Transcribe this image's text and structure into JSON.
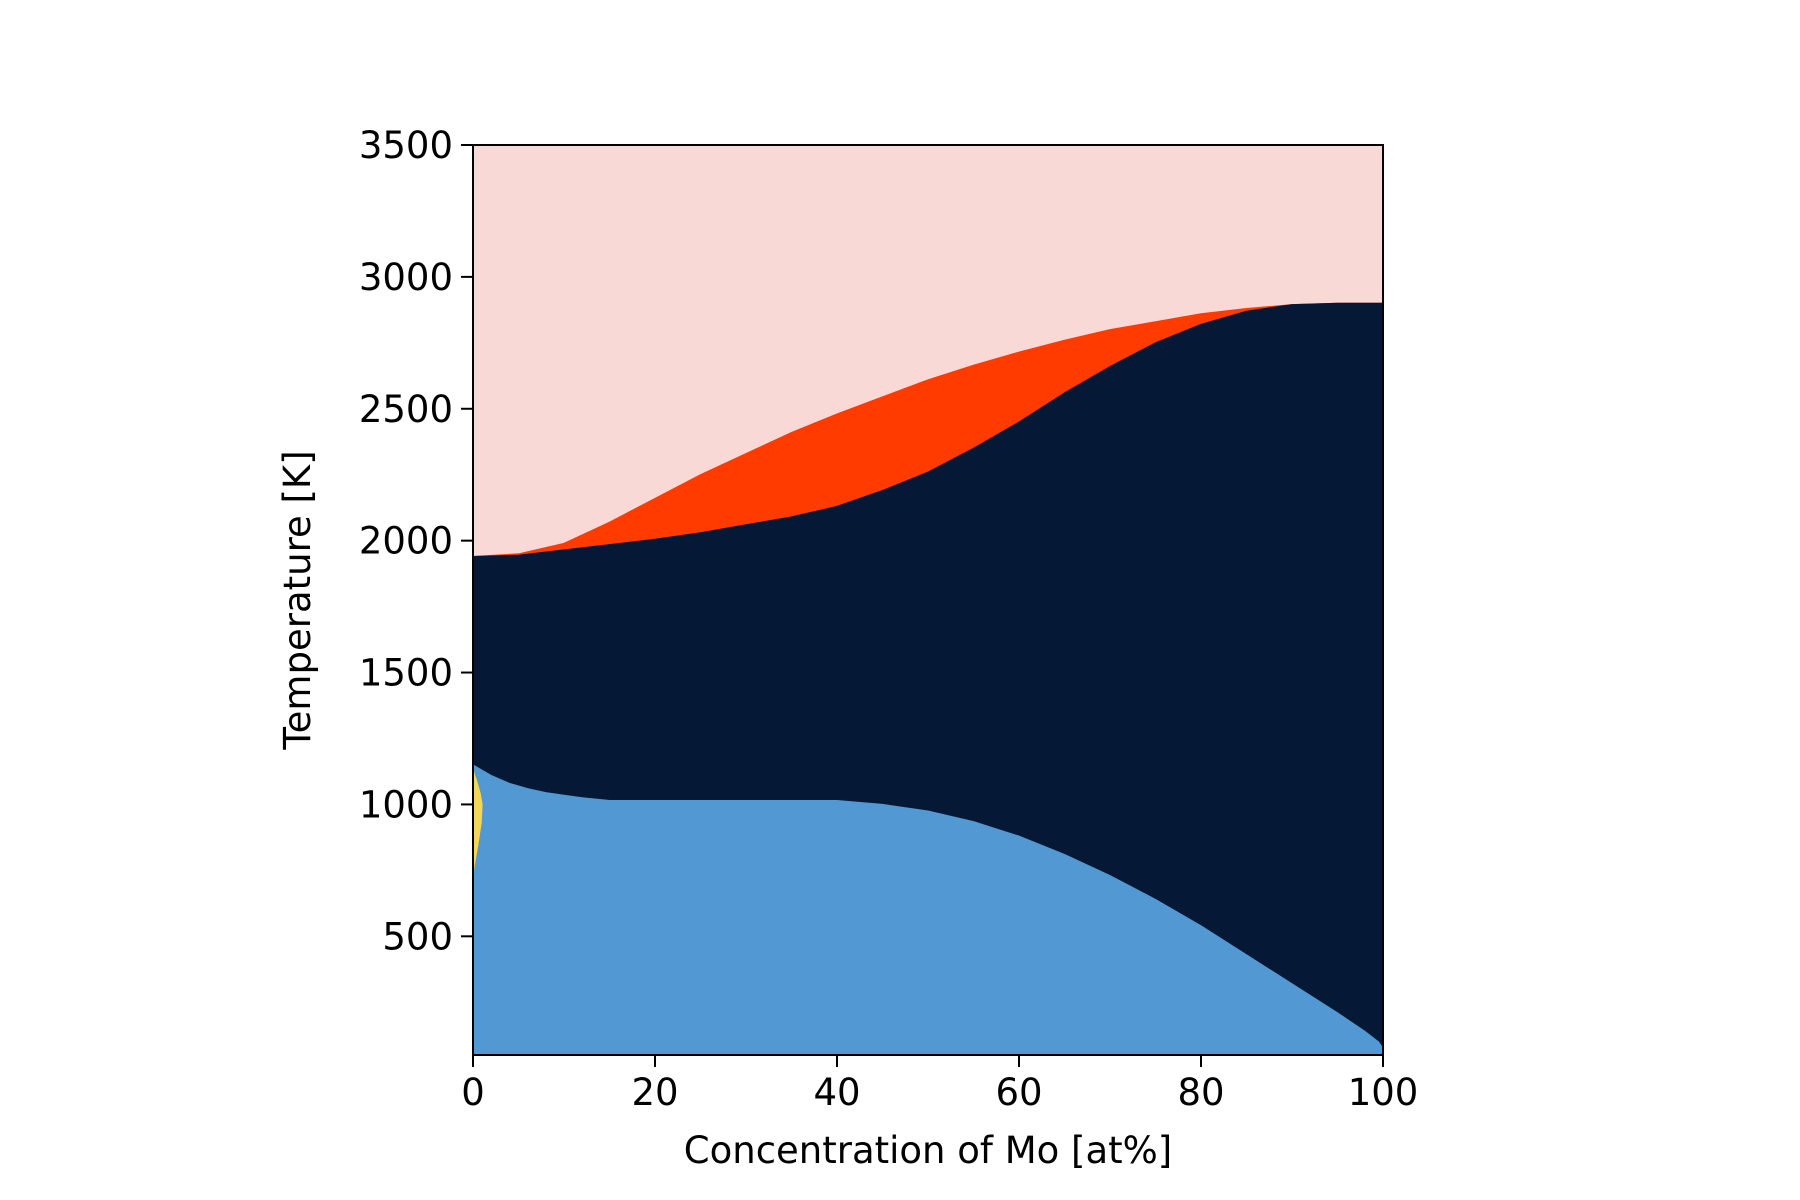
{
  "chart_data": {
    "type": "area",
    "title": "",
    "xlabel": "Concentration of Mo [at%]",
    "ylabel": "Temperature [K]",
    "xlim": [
      0,
      100
    ],
    "ylim": [
      50,
      3500
    ],
    "xticks": [
      0,
      20,
      40,
      60,
      80,
      100
    ],
    "xtick_labels": [
      "0",
      "20",
      "40",
      "60",
      "80",
      "100"
    ],
    "yticks": [
      500,
      1000,
      1500,
      2000,
      2500,
      3000,
      3500
    ],
    "ytick_labels": [
      "500",
      "1000",
      "1500",
      "2000",
      "2500",
      "3000",
      "3500"
    ],
    "grid": false,
    "legend": "none",
    "regions": [
      {
        "color": "#f8d9d6",
        "upper": {
          "x": [
            0,
            100
          ],
          "y": [
            3500,
            3500
          ]
        },
        "lower": {
          "x": [
            0,
            5,
            10,
            15,
            20,
            25,
            30,
            35,
            40,
            45,
            50,
            55,
            60,
            65,
            70,
            75,
            80,
            85,
            90,
            95,
            100
          ],
          "y": [
            1940,
            1950,
            1990,
            2070,
            2160,
            2250,
            2330,
            2410,
            2480,
            2545,
            2610,
            2665,
            2715,
            2760,
            2800,
            2830,
            2860,
            2880,
            2895,
            2900,
            2900
          ]
        }
      },
      {
        "color": "#ff3b00",
        "upper": {
          "x": [
            0,
            5,
            10,
            15,
            20,
            25,
            30,
            35,
            40,
            45,
            50,
            55,
            60,
            65,
            70,
            75,
            80,
            85,
            90,
            95,
            100
          ],
          "y": [
            1940,
            1950,
            1990,
            2070,
            2160,
            2250,
            2330,
            2410,
            2480,
            2545,
            2610,
            2665,
            2715,
            2760,
            2800,
            2830,
            2860,
            2880,
            2895,
            2900,
            2900
          ]
        },
        "lower": {
          "x": [
            0,
            5,
            10,
            15,
            20,
            25,
            30,
            35,
            40,
            45,
            50,
            55,
            60,
            65,
            70,
            75,
            80,
            85,
            90,
            95,
            100
          ],
          "y": [
            1940,
            1945,
            1965,
            1985,
            2005,
            2030,
            2060,
            2090,
            2130,
            2190,
            2260,
            2350,
            2450,
            2560,
            2660,
            2750,
            2820,
            2870,
            2895,
            2900,
            2900
          ]
        }
      },
      {
        "color": "#051937",
        "upper": {
          "x": [
            0,
            5,
            10,
            15,
            20,
            25,
            30,
            35,
            40,
            45,
            50,
            55,
            60,
            65,
            70,
            75,
            80,
            85,
            90,
            95,
            100
          ],
          "y": [
            1940,
            1945,
            1965,
            1985,
            2005,
            2030,
            2060,
            2090,
            2130,
            2190,
            2260,
            2350,
            2450,
            2560,
            2660,
            2750,
            2820,
            2870,
            2895,
            2900,
            2900
          ]
        },
        "lower": {
          "x": [
            0,
            2,
            4,
            6,
            8,
            10,
            12,
            15,
            20,
            30,
            40,
            45,
            50,
            55,
            60,
            65,
            70,
            75,
            80,
            85,
            90,
            95,
            98,
            99.5,
            100
          ],
          "y": [
            1150,
            1110,
            1080,
            1060,
            1045,
            1035,
            1025,
            1015,
            1015,
            1015,
            1015,
            1000,
            975,
            935,
            880,
            810,
            730,
            640,
            540,
            430,
            320,
            210,
            140,
            100,
            75
          ]
        }
      },
      {
        "color": "#5298d3",
        "upper": {
          "x": [
            0,
            2,
            4,
            6,
            8,
            10,
            12,
            15,
            20,
            30,
            40,
            45,
            50,
            55,
            60,
            65,
            70,
            75,
            80,
            85,
            90,
            95,
            98,
            99.5,
            100
          ],
          "y": [
            1150,
            1110,
            1080,
            1060,
            1045,
            1035,
            1025,
            1015,
            1015,
            1015,
            1015,
            1000,
            975,
            935,
            880,
            810,
            730,
            640,
            540,
            430,
            320,
            210,
            140,
            100,
            75
          ]
        },
        "lower": {
          "x": [
            0,
            100
          ],
          "y": [
            50,
            50
          ]
        }
      },
      {
        "color": "#f5d55a",
        "upper": {
          "x": [
            0,
            0.4,
            0.8,
            1.0,
            0.9,
            0.5,
            0.1,
            0
          ],
          "y": [
            1130,
            1090,
            1040,
            1000,
            930,
            840,
            760,
            730
          ]
        },
        "lower": {
          "x": [
            0,
            0
          ],
          "y": [
            1130,
            730
          ]
        }
      }
    ]
  }
}
